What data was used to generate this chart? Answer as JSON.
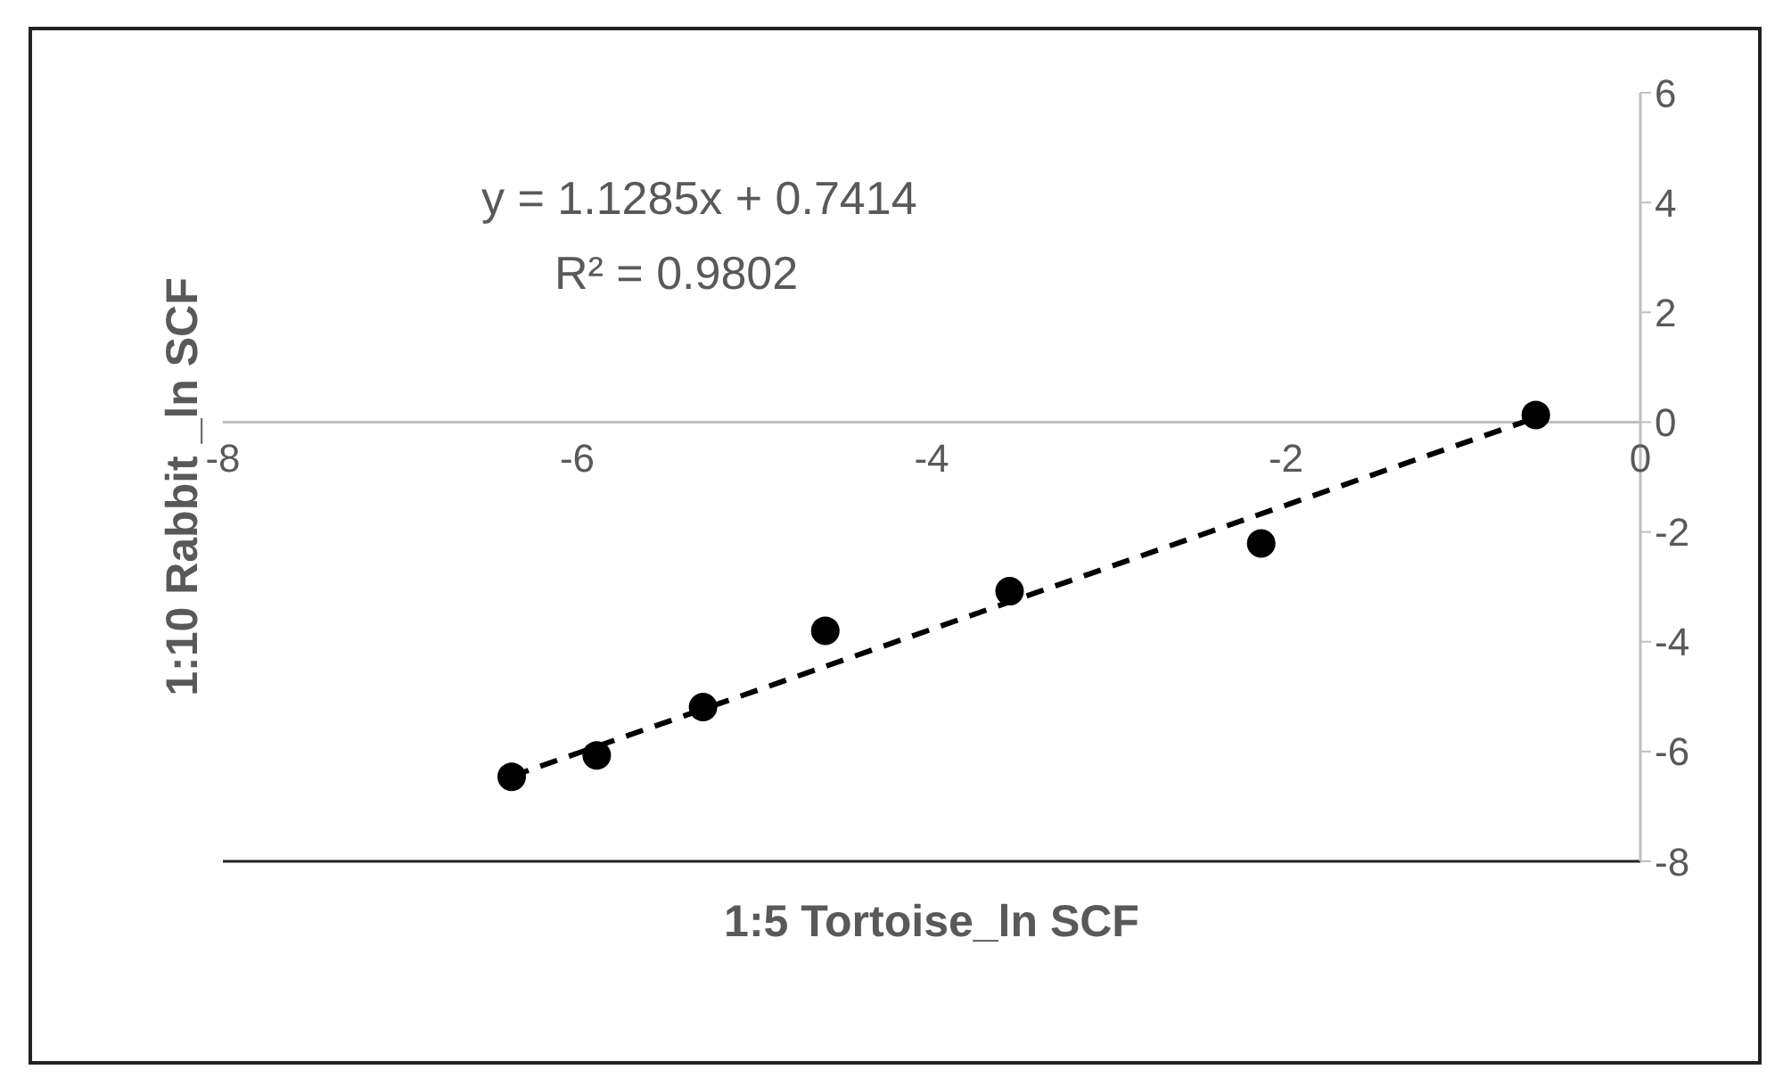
{
  "chart_data": {
    "type": "scatter",
    "xlabel": "1:5 Tortoise_ln SCF",
    "ylabel": "1:10 Rabbit _ln SCF",
    "x": [
      -6.37,
      -5.89,
      -5.29,
      -4.6,
      -3.56,
      -2.14,
      -0.59
    ],
    "series": [
      {
        "color": "#000000",
        "values": [
          -6.46,
          -6.07,
          -5.19,
          -3.8,
          -3.08,
          -2.21,
          0.13
        ]
      },
      {
        "type": "line",
        "color": "#000000",
        "line_style": "dashed",
        "marker": "none",
        "x": [
          -6.37,
          -0.59
        ],
        "values": [
          -6.45,
          0.08
        ]
      }
    ],
    "marker": "circle",
    "xlim": [
      -8,
      0
    ],
    "xticks": [
      -8,
      -6,
      -4,
      -2,
      0
    ],
    "ylim": [
      -8,
      6
    ],
    "yticks": [
      -8,
      -6,
      -4,
      -2,
      0,
      2,
      4,
      6
    ],
    "annotations": [
      "y = 1.1285x + 0.7414",
      "R² = 0.9802"
    ],
    "grid": false
  }
}
